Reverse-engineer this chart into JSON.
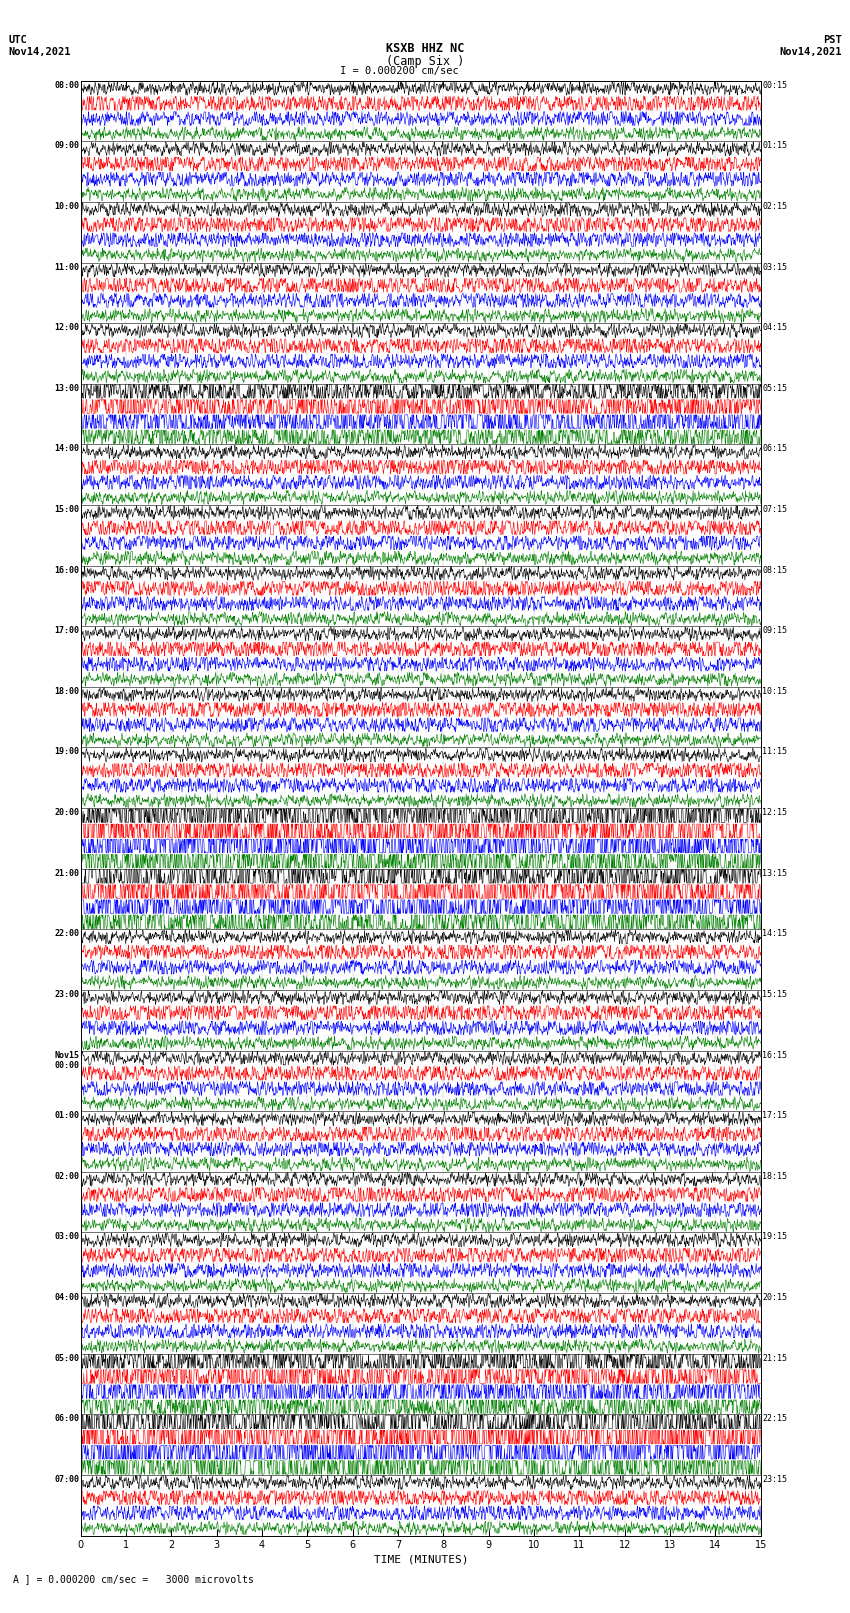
{
  "title_line1": "KSXB HHZ NC",
  "title_line2": "(Camp Six )",
  "scale_label": "I = 0.000200 cm/sec",
  "utc_label": "UTC\nNov14,2021",
  "pst_label": "PST\nNov14,2021",
  "xlabel": "TIME (MINUTES)",
  "footer_label": "A ] = 0.000200 cm/sec =   3000 microvolts",
  "left_times": [
    "08:00",
    "09:00",
    "10:00",
    "11:00",
    "12:00",
    "13:00",
    "14:00",
    "15:00",
    "16:00",
    "17:00",
    "18:00",
    "19:00",
    "20:00",
    "21:00",
    "22:00",
    "23:00",
    "Nov15\n00:00",
    "01:00",
    "02:00",
    "03:00",
    "04:00",
    "05:00",
    "06:00",
    "07:00"
  ],
  "right_times": [
    "00:15",
    "01:15",
    "02:15",
    "03:15",
    "04:15",
    "05:15",
    "06:15",
    "07:15",
    "08:15",
    "09:15",
    "10:15",
    "11:15",
    "12:15",
    "13:15",
    "14:15",
    "15:15",
    "16:15",
    "17:15",
    "18:15",
    "19:15",
    "20:15",
    "21:15",
    "22:15",
    "23:15"
  ],
  "n_rows": 24,
  "traces_per_row": 4,
  "colors": [
    "black",
    "red",
    "blue",
    "green"
  ],
  "background": "white",
  "fig_width": 8.5,
  "fig_height": 16.13,
  "dpi": 100,
  "minutes": 15,
  "samples_per_trace": 1800,
  "noise_scales": [
    0.3,
    0.45,
    0.38,
    0.28
  ],
  "large_amp_rows": {
    "5": 2.5,
    "12": 5.0,
    "13": 4.0,
    "21": 3.0,
    "22": 6.0
  }
}
